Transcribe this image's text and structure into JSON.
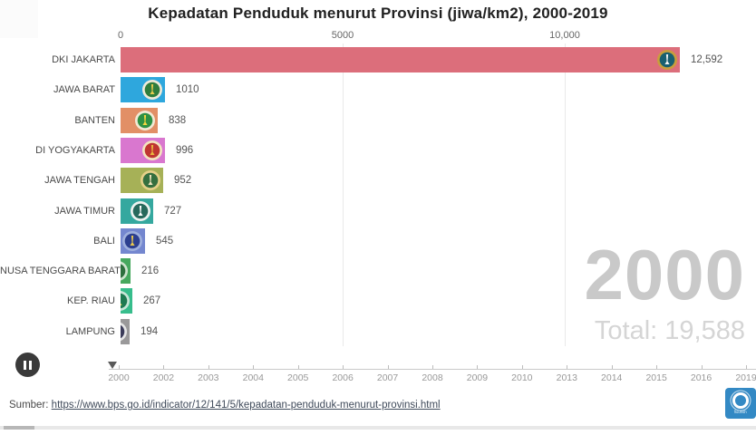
{
  "chart_data": {
    "type": "bar",
    "orientation": "horizontal",
    "title": "Kepadatan Penduduk menurut Provinsi (jiwa/km2), 2000-2019",
    "year": "2000",
    "total": "Total: 19,588",
    "x_axis": {
      "xlim": [
        0,
        14306
      ],
      "gridlines": true,
      "ticks": [
        {
          "label": "0",
          "value": 0
        },
        {
          "label": "5000",
          "value": 5000
        },
        {
          "label": "10,000",
          "value": 10000
        }
      ]
    },
    "bars": [
      {
        "label": "DKI JAKARTA",
        "value": 12592,
        "display": "12,592",
        "color": "#dc6e7b",
        "emblem": {
          "ring": "#c99e3c",
          "bg": "#195f70",
          "glyph": "#f5f5f5"
        }
      },
      {
        "label": "JAWA BARAT",
        "value": 1010,
        "display": "1010",
        "color": "#2ea7dd",
        "emblem": {
          "ring": "#efead9",
          "bg": "#2f7d3c",
          "glyph": "#e9cb4e"
        }
      },
      {
        "label": "BANTEN",
        "value": 838,
        "display": "838",
        "color": "#e28f66",
        "emblem": {
          "ring": "#f1e9d5",
          "bg": "#2e9143",
          "glyph": "#f3d640"
        }
      },
      {
        "label": "DI YOGYAKARTA",
        "value": 996,
        "display": "996",
        "color": "#d977cf",
        "emblem": {
          "ring": "#f3e4be",
          "bg": "#bf3530",
          "glyph": "#eab83d"
        }
      },
      {
        "label": "JAWA TENGAH",
        "value": 952,
        "display": "952",
        "color": "#a6b157",
        "emblem": {
          "ring": "#e5d089",
          "bg": "#356f3f",
          "glyph": "#efe3bd"
        }
      },
      {
        "label": "JAWA TIMUR",
        "value": 727,
        "display": "727",
        "color": "#35a89f",
        "emblem": {
          "ring": "#eef2f0",
          "bg": "#27695c",
          "glyph": "#ffffff"
        }
      },
      {
        "label": "BALI",
        "value": 545,
        "display": "545",
        "color": "#7487cf",
        "emblem": {
          "ring": "#9fb0dd",
          "bg": "#2c3f8f",
          "glyph": "#e9c94e"
        }
      },
      {
        "label": "NUSA TENGGARA BARAT",
        "value": 216,
        "display": "216",
        "color": "#46a85e",
        "emblem": {
          "ring": "#cfe4cf",
          "bg": "#2e6f3e",
          "glyph": "#eed25c"
        }
      },
      {
        "label": "KEP. RIAU",
        "value": 267,
        "display": "267",
        "color": "#37bd8c",
        "emblem": {
          "ring": "#c9e6d8",
          "bg": "#1f7a52",
          "glyph": "#eed25c"
        }
      },
      {
        "label": "LAMPUNG",
        "value": 194,
        "display": "194",
        "color": "#9a999a",
        "emblem": {
          "ring": "#e6e6e6",
          "bg": "#3c3c5a",
          "glyph": "#eed25c"
        }
      }
    ]
  },
  "timeline": {
    "years": [
      "2000",
      "2002",
      "2003",
      "2004",
      "2005",
      "2006",
      "2007",
      "2008",
      "2009",
      "2010",
      "2013",
      "2014",
      "2015",
      "2016",
      "2019"
    ],
    "current": "2000"
  },
  "source": {
    "prefix": "Sumber: ",
    "url": "https://www.bps.go.id/indicator/12/141/5/kepadatan-penduduk-menurut-provinsi.html"
  },
  "badge": {
    "label": "flourish"
  }
}
